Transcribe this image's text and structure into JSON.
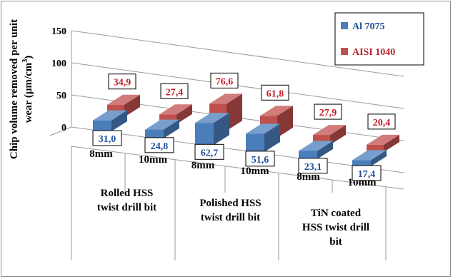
{
  "chart_data": {
    "type": "bar",
    "style": "3d-clustered-column",
    "ylabel_line1": "Chip volume removed per unit",
    "ylabel_line2_prefix": "wear  (µm/cm",
    "ylabel_line2_sup": "3",
    "ylabel_line2_suffix": ")",
    "yticks": [
      "0",
      "50",
      "100",
      "150"
    ],
    "ylim": [
      0,
      150
    ],
    "categories": [
      "8mm",
      "10mm",
      "8mm",
      "10mm",
      "8mm",
      "10mm"
    ],
    "groups": [
      {
        "lines": [
          "Rolled HSS",
          "twist drill bit"
        ]
      },
      {
        "lines": [
          "Polished HSS",
          "twist drill bit"
        ]
      },
      {
        "lines": [
          "TiN  coated",
          "HSS twist drill",
          "bit"
        ]
      }
    ],
    "series": [
      {
        "name": "Al 7075",
        "color": "#4a7ebb",
        "values": [
          31.0,
          24.8,
          62.7,
          51.6,
          23.1,
          17.4
        ],
        "labels": [
          "31,0",
          "24,8",
          "62,7",
          "51,6",
          "23,1",
          "17,4"
        ]
      },
      {
        "name": "AISI 1040",
        "color": "#c0504d",
        "values": [
          34.9,
          27.4,
          76.6,
          61.8,
          27.9,
          20.4
        ],
        "labels": [
          "34,9",
          "27,4",
          "76,6",
          "61,8",
          "27,9",
          "20,4"
        ]
      }
    ],
    "legend_position": "top-right",
    "grid": true
  }
}
